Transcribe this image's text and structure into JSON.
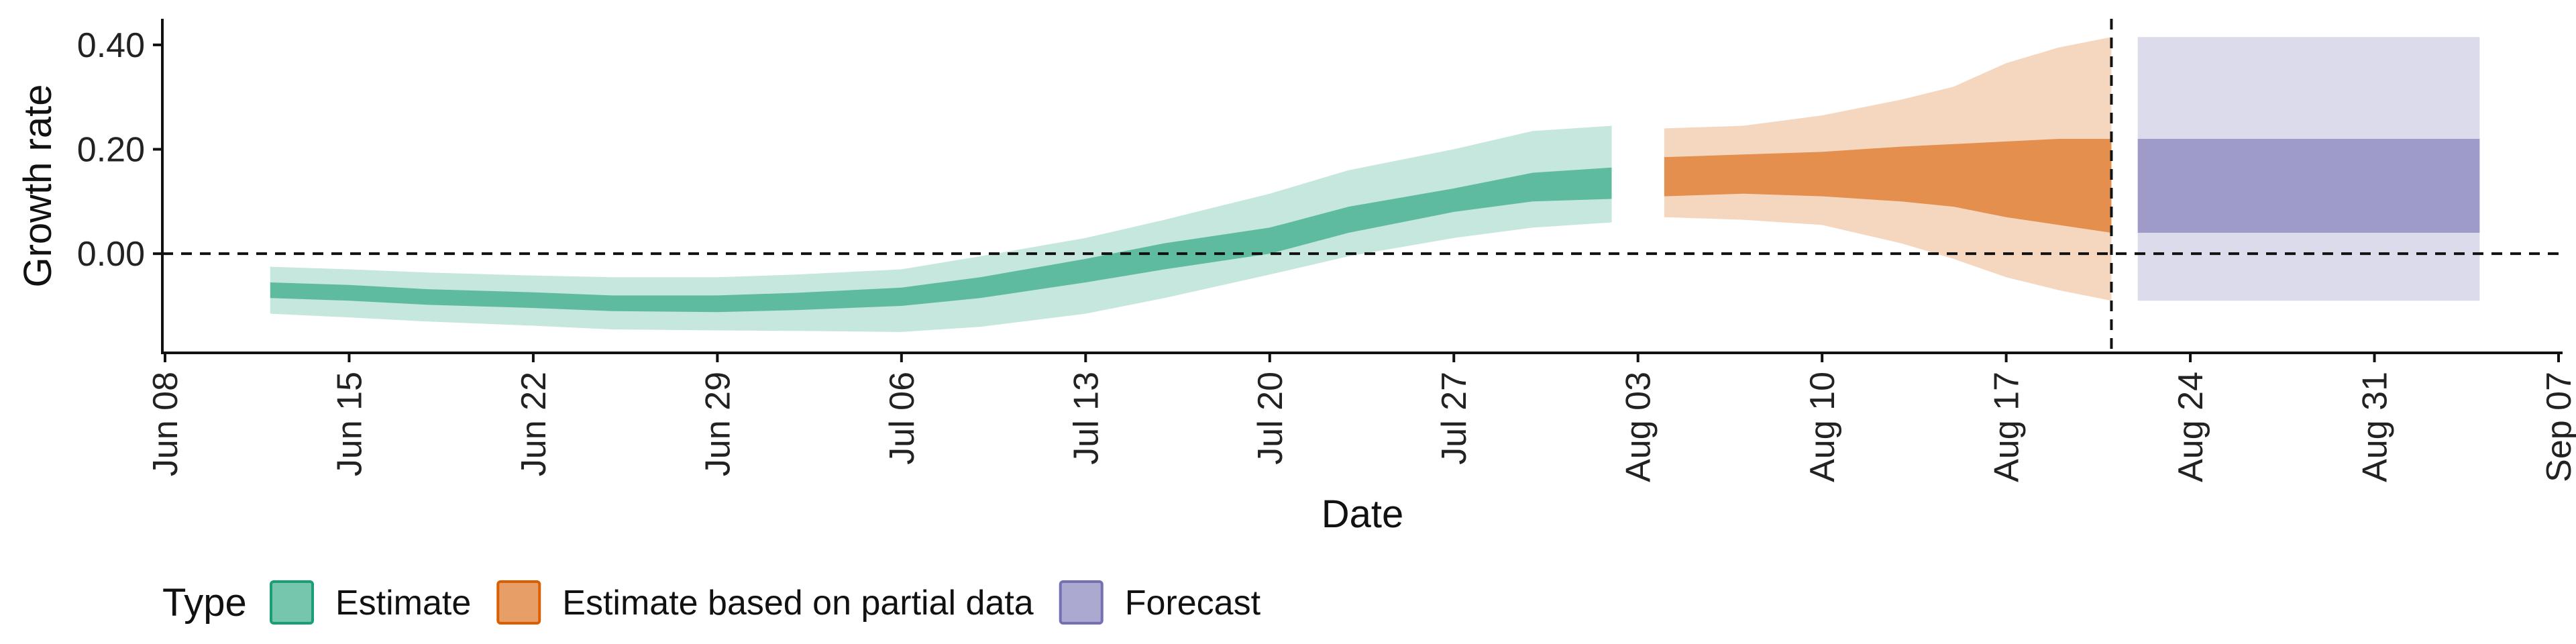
{
  "chart_data": {
    "type": "area",
    "xlabel": "Date",
    "ylabel": "Growth rate",
    "x_ticks": [
      "2020-06-08",
      "2020-06-15",
      "2020-06-22",
      "2020-06-29",
      "2020-07-06",
      "2020-07-13",
      "2020-07-20",
      "2020-07-27",
      "2020-08-03",
      "2020-08-10",
      "2020-08-17",
      "2020-08-24",
      "2020-08-31",
      "2020-09-07"
    ],
    "x_tick_labels": [
      "Jun 08",
      "Jun 15",
      "Jun 22",
      "Jun 29",
      "Jul 06",
      "Jul 13",
      "Jul 20",
      "Jul 27",
      "Aug 03",
      "Aug 10",
      "Aug 17",
      "Aug 24",
      "Aug 31",
      "Sep 07"
    ],
    "y_ticks": [
      0.0,
      0.2,
      0.4
    ],
    "y_tick_labels": [
      "0.00",
      "0.20",
      "0.40"
    ],
    "ylim": [
      -0.19,
      0.45
    ],
    "xlim": [
      "2020-06-08",
      "2020-09-07"
    ],
    "reference_lines": {
      "horizontal_y": 0.0,
      "vertical_date": "2020-08-21",
      "style": "dashed"
    },
    "legend": {
      "title": "Type",
      "position": "bottom-left",
      "entries": [
        {
          "label": "Estimate",
          "color": "#1b9e77"
        },
        {
          "label": "Estimate based on partial data",
          "color": "#d95f02"
        },
        {
          "label": "Forecast",
          "color": "#7570b3"
        }
      ]
    },
    "series": [
      {
        "name": "Estimate",
        "color": "#1b9e77",
        "points": [
          {
            "x": "2020-06-12",
            "lo90": -0.115,
            "lo50": -0.085,
            "hi50": -0.055,
            "hi90": -0.025
          },
          {
            "x": "2020-06-15",
            "lo90": -0.122,
            "lo50": -0.09,
            "hi50": -0.06,
            "hi90": -0.03
          },
          {
            "x": "2020-06-18",
            "lo90": -0.13,
            "lo50": -0.098,
            "hi50": -0.068,
            "hi90": -0.036
          },
          {
            "x": "2020-06-22",
            "lo90": -0.138,
            "lo50": -0.104,
            "hi50": -0.074,
            "hi90": -0.042
          },
          {
            "x": "2020-06-25",
            "lo90": -0.145,
            "lo50": -0.11,
            "hi50": -0.08,
            "hi90": -0.045
          },
          {
            "x": "2020-06-29",
            "lo90": -0.147,
            "lo50": -0.112,
            "hi50": -0.08,
            "hi90": -0.045
          },
          {
            "x": "2020-07-02",
            "lo90": -0.148,
            "lo50": -0.108,
            "hi50": -0.075,
            "hi90": -0.04
          },
          {
            "x": "2020-07-06",
            "lo90": -0.15,
            "lo50": -0.1,
            "hi50": -0.065,
            "hi90": -0.03
          },
          {
            "x": "2020-07-09",
            "lo90": -0.14,
            "lo50": -0.085,
            "hi50": -0.045,
            "hi90": -0.005
          },
          {
            "x": "2020-07-13",
            "lo90": -0.115,
            "lo50": -0.055,
            "hi50": -0.01,
            "hi90": 0.03
          },
          {
            "x": "2020-07-16",
            "lo90": -0.085,
            "lo50": -0.03,
            "hi50": 0.02,
            "hi90": 0.065
          },
          {
            "x": "2020-07-20",
            "lo90": -0.04,
            "lo50": 0.0,
            "hi50": 0.05,
            "hi90": 0.115
          },
          {
            "x": "2020-07-23",
            "lo90": -0.005,
            "lo50": 0.04,
            "hi50": 0.09,
            "hi90": 0.16
          },
          {
            "x": "2020-07-27",
            "lo90": 0.03,
            "lo50": 0.08,
            "hi50": 0.125,
            "hi90": 0.2
          },
          {
            "x": "2020-07-30",
            "lo90": 0.05,
            "lo50": 0.1,
            "hi50": 0.155,
            "hi90": 0.235
          },
          {
            "x": "2020-08-02",
            "lo90": 0.06,
            "lo50": 0.105,
            "hi50": 0.165,
            "hi90": 0.245
          }
        ]
      },
      {
        "name": "Estimate based on partial data",
        "color": "#d95f02",
        "points": [
          {
            "x": "2020-08-04",
            "lo90": 0.07,
            "lo50": 0.11,
            "hi50": 0.185,
            "hi90": 0.24
          },
          {
            "x": "2020-08-07",
            "lo90": 0.065,
            "lo50": 0.115,
            "hi50": 0.19,
            "hi90": 0.245
          },
          {
            "x": "2020-08-10",
            "lo90": 0.055,
            "lo50": 0.11,
            "hi50": 0.195,
            "hi90": 0.265
          },
          {
            "x": "2020-08-13",
            "lo90": 0.02,
            "lo50": 0.1,
            "hi50": 0.205,
            "hi90": 0.295
          },
          {
            "x": "2020-08-15",
            "lo90": -0.01,
            "lo50": 0.09,
            "hi50": 0.21,
            "hi90": 0.32
          },
          {
            "x": "2020-08-17",
            "lo90": -0.045,
            "lo50": 0.07,
            "hi50": 0.215,
            "hi90": 0.365
          },
          {
            "x": "2020-08-19",
            "lo90": -0.07,
            "lo50": 0.055,
            "hi50": 0.22,
            "hi90": 0.395
          },
          {
            "x": "2020-08-21",
            "lo90": -0.09,
            "lo50": 0.04,
            "hi50": 0.22,
            "hi90": 0.415
          }
        ]
      },
      {
        "name": "Forecast",
        "color": "#7570b3",
        "points": [
          {
            "x": "2020-08-22",
            "lo90": -0.09,
            "lo50": 0.04,
            "hi50": 0.22,
            "hi90": 0.415
          },
          {
            "x": "2020-09-04",
            "lo90": -0.09,
            "lo50": 0.04,
            "hi50": 0.22,
            "hi90": 0.415
          }
        ]
      }
    ]
  }
}
